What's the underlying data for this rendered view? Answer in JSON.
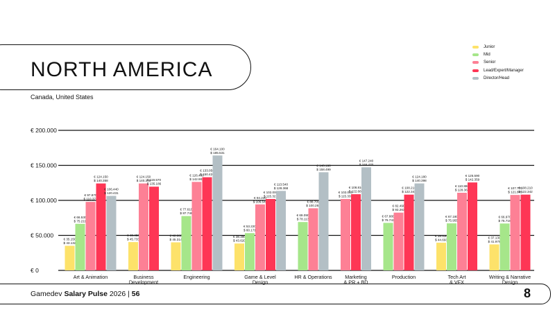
{
  "header": {
    "title": "NORTH AMERICA",
    "subtitle": "Canada, United States"
  },
  "footer": {
    "brand_prefix": "Gamedev",
    "brand_bold": "Salary Pulse",
    "year": "2026 |",
    "page": "56",
    "logo": "8"
  },
  "colors": {
    "Junior": "#fde26a",
    "Mid": "#a6e68a",
    "Senior": "#fd8095",
    "Lead/Expert/Manager": "#fe3655",
    "Director/Head": "#b3bfc5"
  },
  "chart_data": {
    "type": "bar",
    "ylim": [
      0,
      200000
    ],
    "yticks": [
      {
        "v": 0,
        "label": "€ 0"
      },
      {
        "v": 50000,
        "label": "€ 50.000"
      },
      {
        "v": 100000,
        "label": "€ 100.000"
      },
      {
        "v": 150000,
        "label": "€ 150.000"
      },
      {
        "v": 200000,
        "label": "€ 200.000"
      }
    ],
    "legend": [
      "Junior",
      "Mid",
      "Senior",
      "Lead/Expert/Manager",
      "Director/Head"
    ],
    "legend_position": "top-right",
    "groups": [
      {
        "category": [
          "Art & Animation"
        ],
        "bars": [
          {
            "s": "Junior",
            "eur": 35150,
            "eur_label": "€ 35.150",
            "usd_label": "$ 43.132"
          },
          {
            "s": "Mid",
            "eur": 66530,
            "eur_label": "€ 66.530",
            "usd_label": "$ 75.219"
          },
          {
            "s": "Senior",
            "eur": 97870,
            "eur_label": "€ 97.870",
            "usd_label": "$ 110.373"
          },
          {
            "s": "Lead/Expert/Manager",
            "eur": 124150,
            "eur_label": "€ 124.150",
            "usd_label": "$ 140.358"
          },
          {
            "s": "Director/Head",
            "eur": 106440,
            "eur_label": "€ 106.440",
            "usd_label": "$ 120.431"
          }
        ]
      },
      {
        "category": [
          "Business",
          "Development"
        ],
        "bars": [
          {
            "s": "Junior",
            "eur": 40450,
            "eur_label": "€ 40.450",
            "usd_label": "$ 45.733"
          },
          {
            "s": "Senior",
            "eur": 124150,
            "eur_label": "€ 124.150",
            "usd_label": "$ 140.395"
          },
          {
            "s": "Lead/Expert/Manager",
            "eur": 119570,
            "eur_label": "€ 119.570",
            "usd_label": "$ 135.186"
          }
        ]
      },
      {
        "category": [
          "Engineering"
        ],
        "bars": [
          {
            "s": "Junior",
            "eur": 40080,
            "eur_label": "€ 40.080",
            "usd_label": "$ 45.314"
          },
          {
            "s": "Mid",
            "eur": 77610,
            "eur_label": "€ 77.610",
            "usd_label": "$ 87.746"
          },
          {
            "s": "Senior",
            "eur": 126400,
            "eur_label": "€ 126.400",
            "usd_label": "$ 142.908"
          },
          {
            "s": "Lead/Expert/Manager",
            "eur": 133050,
            "eur_label": "€ 133.050",
            "usd_label": "$ 150.426"
          },
          {
            "s": "Director/Head",
            "eur": 164100,
            "eur_label": "€ 164.100",
            "usd_label": "$ 185.531"
          }
        ]
      },
      {
        "category": [
          "Game & Level",
          "Design"
        ],
        "bars": [
          {
            "s": "Junior",
            "eur": 38390,
            "eur_label": "€ 38.390",
            "usd_label": "$ 43.620"
          },
          {
            "s": "Mid",
            "eur": 53220,
            "eur_label": "€ 53.220",
            "usd_label": "$ 60.171"
          },
          {
            "s": "Senior",
            "eur": 94240,
            "eur_label": "€ 94.240",
            "usd_label": "$ 106.548"
          },
          {
            "s": "Lead/Expert/Manager",
            "eur": 102000,
            "eur_label": "€ 102.000",
            "usd_label": "$ 115.321"
          },
          {
            "s": "Director/Head",
            "eur": 113540,
            "eur_label": "€ 113.540",
            "usd_label": "$ 128.368"
          }
        ]
      },
      {
        "category": [
          "HR & Operations"
        ],
        "bars": [
          {
            "s": "Mid",
            "eur": 69090,
            "eur_label": "€ 69.090",
            "usd_label": "$ 78.113"
          },
          {
            "s": "Senior",
            "eur": 88700,
            "eur_label": "€ 88.700",
            "usd_label": "$ 100.284"
          },
          {
            "s": "Director/Head",
            "eur": 140190,
            "eur_label": "€ 140.190",
            "usd_label": "$ 158.499"
          }
        ]
      },
      {
        "category": [
          "Marketing",
          "& PR + BD"
        ],
        "bars": [
          {
            "s": "Senior",
            "eur": 102010,
            "eur_label": "€ 102.010",
            "usd_label": "$ 115.333"
          },
          {
            "s": "Lead/Expert/Manager",
            "eur": 108810,
            "eur_label": "€ 108.810",
            "usd_label": "$ 122.681"
          },
          {
            "s": "Director/Head",
            "eur": 147240,
            "eur_label": "€ 147.240",
            "usd_label": "$ 166.470"
          }
        ]
      },
      {
        "category": [
          "Production"
        ],
        "bars": [
          {
            "s": "Mid",
            "eur": 67880,
            "eur_label": "€ 67.880",
            "usd_label": "$ 76.743"
          },
          {
            "s": "Senior",
            "eur": 82490,
            "eur_label": "€ 82.490",
            "usd_label": "$ 93.263"
          },
          {
            "s": "Lead/Expert/Manager",
            "eur": 108210,
            "eur_label": "€ 108.210",
            "usd_label": "$ 122.342"
          },
          {
            "s": "Director/Head",
            "eur": 124180,
            "eur_label": "€ 124.180",
            "usd_label": "$ 140.398"
          }
        ]
      },
      {
        "category": [
          "Tech Art",
          "& VFX"
        ],
        "bars": [
          {
            "s": "Junior",
            "eur": 39530,
            "eur_label": "€ 39.530",
            "usd_label": "$ 44.693"
          },
          {
            "s": "Mid",
            "eur": 67180,
            "eur_label": "€ 67.180",
            "usd_label": "$ 75.955"
          },
          {
            "s": "Senior",
            "eur": 110880,
            "eur_label": "€ 110.880",
            "usd_label": "$ 128.361"
          },
          {
            "s": "Lead/Expert/Manager",
            "eur": 125590,
            "eur_label": "€ 125.590",
            "usd_label": "$ 142.359"
          }
        ]
      },
      {
        "category": [
          "Writing & Narrative",
          "Design"
        ],
        "bars": [
          {
            "s": "Junior",
            "eur": 37130,
            "eur_label": "€ 37.130",
            "usd_label": "$ 41.979"
          },
          {
            "s": "Mid",
            "eur": 66970,
            "eur_label": "€ 66.970",
            "usd_label": "$ 75.716"
          },
          {
            "s": "Senior",
            "eur": 107770,
            "eur_label": "€ 107.770",
            "usd_label": "$ 121.845"
          },
          {
            "s": "Lead/Expert/Manager",
            "eur": 108210,
            "eur_label": "€ 108.210",
            "usd_label": "$ 122.342"
          }
        ]
      }
    ]
  }
}
